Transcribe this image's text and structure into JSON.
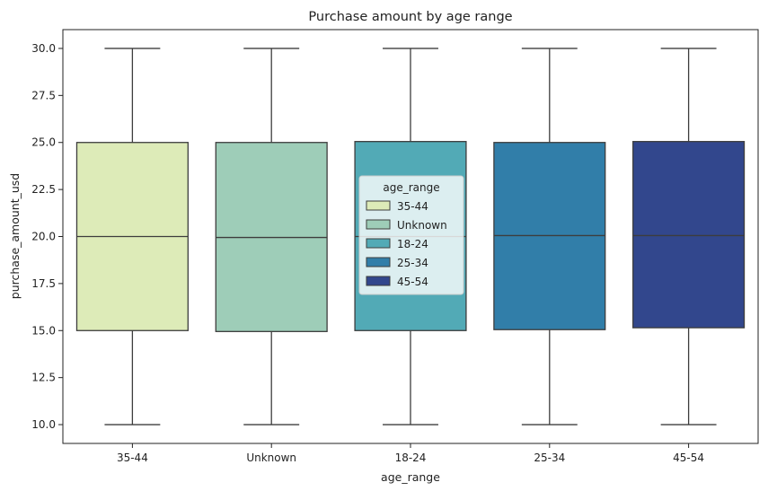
{
  "chart_data": {
    "type": "box",
    "title": "Purchase amount by age range",
    "xlabel": "age_range",
    "ylabel": "purchase_amount_usd",
    "ylim": [
      9.0,
      31.0
    ],
    "yticks": [
      10.0,
      12.5,
      15.0,
      17.5,
      20.0,
      22.5,
      25.0,
      27.5,
      30.0
    ],
    "ytick_labels": [
      "10.0",
      "12.5",
      "15.0",
      "17.5",
      "20.0",
      "22.5",
      "25.0",
      "27.5",
      "30.0"
    ],
    "grid": false,
    "legend": {
      "title": "age_range",
      "placement": "center"
    },
    "categories": [
      "35-44",
      "Unknown",
      "18-24",
      "25-34",
      "45-54"
    ],
    "colors": [
      "#ddebb8",
      "#9ecdb8",
      "#52aab6",
      "#317ea9",
      "#32478d"
    ],
    "boxes": [
      {
        "category": "35-44",
        "whisker_low": 10.0,
        "q1": 15.0,
        "median": 20.0,
        "q3": 25.0,
        "whisker_high": 30.0
      },
      {
        "category": "Unknown",
        "whisker_low": 10.0,
        "q1": 14.95,
        "median": 19.95,
        "q3": 25.0,
        "whisker_high": 30.0
      },
      {
        "category": "18-24",
        "whisker_low": 10.0,
        "q1": 15.0,
        "median": 20.0,
        "q3": 25.05,
        "whisker_high": 30.0
      },
      {
        "category": "25-34",
        "whisker_low": 10.0,
        "q1": 15.05,
        "median": 20.05,
        "q3": 25.0,
        "whisker_high": 30.0
      },
      {
        "category": "45-54",
        "whisker_low": 10.0,
        "q1": 15.15,
        "median": 20.05,
        "q3": 25.05,
        "whisker_high": 30.0
      }
    ]
  }
}
